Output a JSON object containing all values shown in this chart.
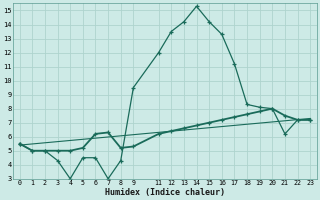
{
  "xlabel": "Humidex (Indice chaleur)",
  "bg_color": "#cdeae6",
  "grid_color": "#aed4ce",
  "line_color": "#1a6b5a",
  "xlim": [
    -0.5,
    23.5
  ],
  "ylim": [
    3,
    15.5
  ],
  "yticks": [
    3,
    4,
    5,
    6,
    7,
    8,
    9,
    10,
    11,
    12,
    13,
    14,
    15
  ],
  "xticks": [
    0,
    1,
    2,
    3,
    4,
    5,
    6,
    7,
    8,
    9,
    11,
    12,
    13,
    14,
    15,
    16,
    17,
    18,
    19,
    20,
    21,
    22,
    23
  ],
  "curve1_x": [
    0,
    1,
    2,
    3,
    4,
    5,
    6,
    7,
    8,
    9,
    11,
    12,
    13,
    14,
    15,
    16,
    17,
    18,
    19,
    20,
    21,
    22,
    23
  ],
  "curve1_y": [
    5.5,
    5.0,
    5.0,
    4.3,
    3.0,
    4.5,
    4.5,
    3.0,
    4.3,
    9.5,
    12.0,
    13.5,
    14.2,
    15.3,
    14.2,
    13.3,
    11.2,
    8.3,
    8.1,
    8.0,
    6.2,
    7.2,
    7.2
  ],
  "curve2_x": [
    0,
    1,
    2,
    3,
    4,
    5,
    6,
    7,
    8,
    9,
    11,
    12,
    13,
    14,
    15,
    16,
    17,
    18,
    19,
    20,
    21,
    22,
    23
  ],
  "curve2_y": [
    5.5,
    5.0,
    5.0,
    5.0,
    5.0,
    5.2,
    6.2,
    6.3,
    5.2,
    5.3,
    6.2,
    6.4,
    6.6,
    6.8,
    7.0,
    7.2,
    7.4,
    7.6,
    7.8,
    8.0,
    7.5,
    7.2,
    7.2
  ],
  "curve3_x": [
    0,
    23
  ],
  "curve3_y": [
    5.4,
    7.3
  ]
}
